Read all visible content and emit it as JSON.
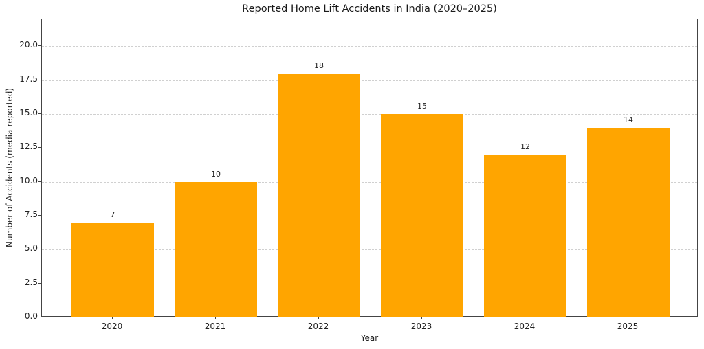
{
  "chart_data": {
    "type": "bar",
    "title": "Reported Home Lift Accidents in India (2020–2025)",
    "xlabel": "Year",
    "ylabel": "Number of Accidents (media-reported)",
    "categories": [
      "2020",
      "2021",
      "2022",
      "2023",
      "2024",
      "2025"
    ],
    "values": [
      7,
      10,
      18,
      15,
      12,
      14
    ],
    "data_labels": [
      "7",
      "10",
      "18",
      "15",
      "12",
      "14"
    ],
    "ylim": [
      0,
      22
    ],
    "yticks": [
      "0.0",
      "2.5",
      "5.0",
      "7.5",
      "10.0",
      "12.5",
      "15.0",
      "17.5",
      "20.0"
    ],
    "grid": "y-dashed",
    "bar_color": "#ffa500",
    "legend": null
  }
}
